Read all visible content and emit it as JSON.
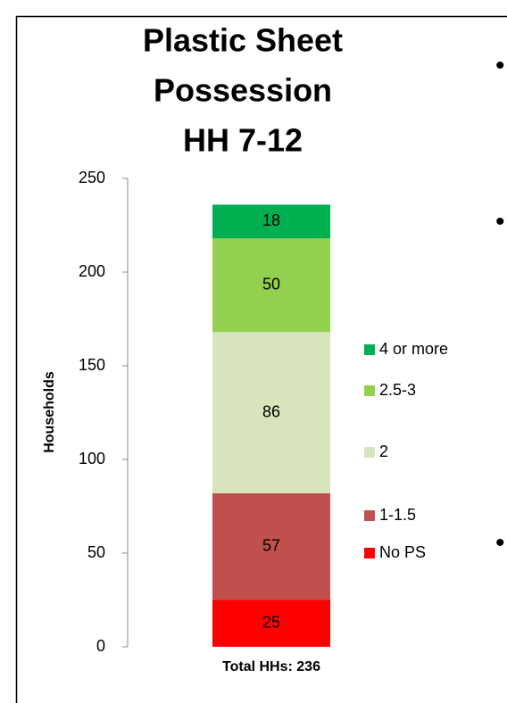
{
  "chart_data": {
    "type": "stacked_bar",
    "title": [
      "Plastic Sheet",
      "Possession",
      "HH 7-12"
    ],
    "y_label": "Households",
    "categories": [
      "Total HHs: 236"
    ],
    "series": [
      {
        "name": "No PS",
        "color": "#ff0000",
        "values": [
          25
        ]
      },
      {
        "name": "1-1.5",
        "color": "#c0504d",
        "values": [
          57
        ]
      },
      {
        "name": "2",
        "color": "#d7e4bd",
        "values": [
          86
        ]
      },
      {
        "name": "2.5-3",
        "color": "#92d050",
        "values": [
          50
        ]
      },
      {
        "name": "4 or more",
        "color": "#00b050",
        "values": [
          18
        ]
      }
    ],
    "ylim": [
      0,
      250
    ],
    "yticks": [
      0,
      50,
      100,
      150,
      200,
      250
    ],
    "legend": "right",
    "annotations": [
      "•",
      "•",
      "•"
    ]
  }
}
